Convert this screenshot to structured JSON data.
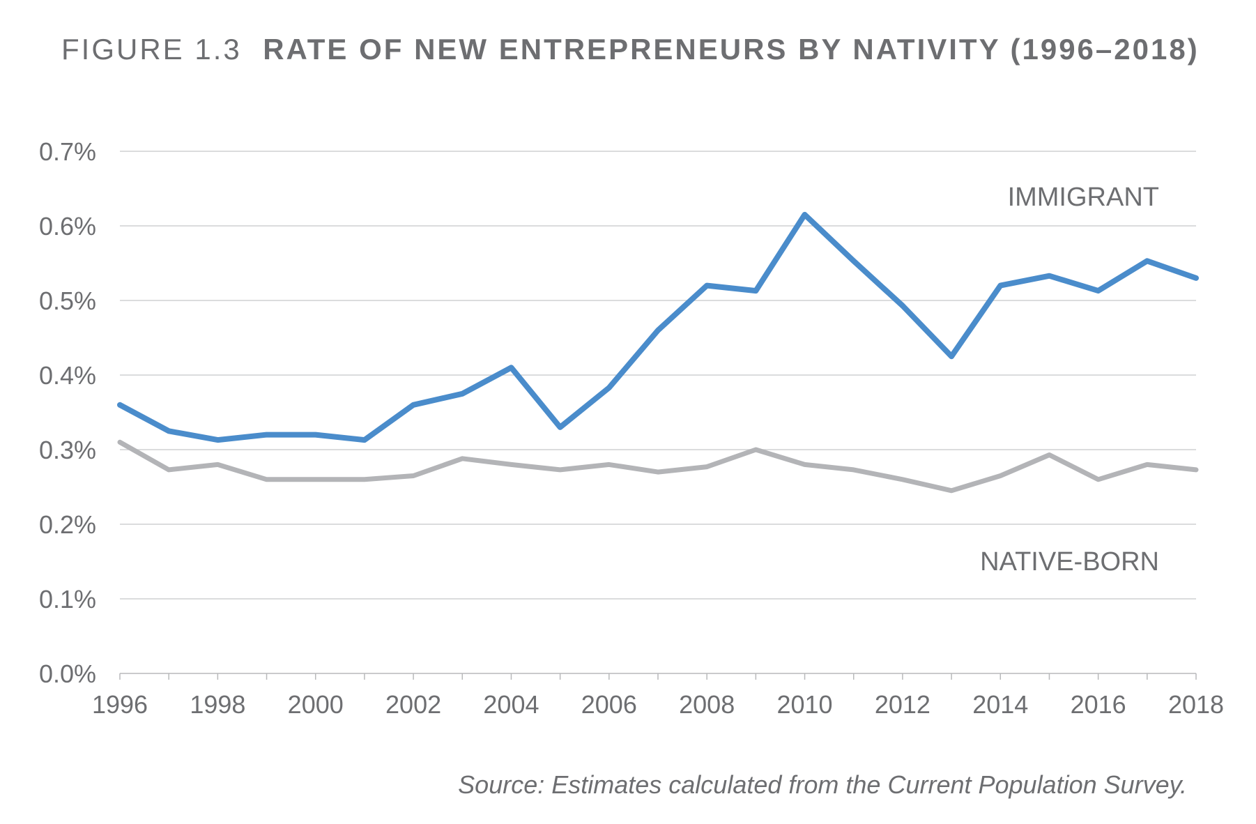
{
  "chart_data": {
    "type": "line",
    "title_prefix": "FIGURE 1.3",
    "title": "RATE OF NEW ENTREPRENEURS BY NATIVITY (1996–2018)",
    "xlabel": "",
    "ylabel": "",
    "x": [
      1996,
      1997,
      1998,
      1999,
      2000,
      2001,
      2002,
      2003,
      2004,
      2005,
      2006,
      2007,
      2008,
      2009,
      2010,
      2011,
      2012,
      2013,
      2014,
      2015,
      2016,
      2017,
      2018
    ],
    "x_tick_labels": [
      "1996",
      "1998",
      "2000",
      "2002",
      "2004",
      "2006",
      "2008",
      "2010",
      "2012",
      "2014",
      "2016",
      "2018"
    ],
    "y_tick_labels": [
      "0.0%",
      "0.1%",
      "0.2%",
      "0.3%",
      "0.4%",
      "0.5%",
      "0.6%",
      "0.7%"
    ],
    "ylim": [
      0,
      0.7
    ],
    "y_unit": "%",
    "grid": "horizontal",
    "series": [
      {
        "name": "IMMIGRANT",
        "color": "#4a8ccb",
        "values": [
          0.36,
          0.325,
          0.313,
          0.32,
          0.32,
          0.313,
          0.36,
          0.375,
          0.41,
          0.33,
          0.383,
          0.46,
          0.52,
          0.513,
          0.615,
          0.553,
          0.493,
          0.425,
          0.52,
          0.533,
          0.513,
          0.553,
          0.53
        ]
      },
      {
        "name": "NATIVE-BORN",
        "color": "#b3b4b7",
        "values": [
          0.31,
          0.273,
          0.28,
          0.26,
          0.26,
          0.26,
          0.265,
          0.288,
          0.28,
          0.273,
          0.28,
          0.27,
          0.277,
          0.3,
          0.28,
          0.273,
          0.26,
          0.245,
          0.265,
          0.293,
          0.26,
          0.28,
          0.273
        ]
      }
    ],
    "source": "Source: Estimates calculated from the Current Population Survey."
  }
}
